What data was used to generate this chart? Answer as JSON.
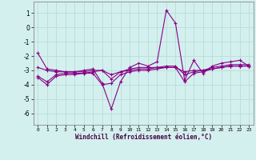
{
  "xlabel": "Windchill (Refroidissement éolien,°C)",
  "bg_color": "#d4f0ee",
  "grid_color": "#b8ddd8",
  "line_color": "#880088",
  "xlim": [
    -0.5,
    23.5
  ],
  "ylim": [
    -6.8,
    1.8
  ],
  "xticks": [
    0,
    1,
    2,
    3,
    4,
    5,
    6,
    7,
    8,
    9,
    10,
    11,
    12,
    13,
    14,
    15,
    16,
    17,
    18,
    19,
    20,
    21,
    22,
    23
  ],
  "yticks": [
    -6,
    -5,
    -4,
    -3,
    -2,
    -1,
    0,
    1
  ],
  "series1_x": [
    0,
    1,
    2,
    3,
    4,
    5,
    6,
    7,
    8,
    9,
    10,
    11,
    12,
    13,
    14,
    15,
    16,
    17,
    18,
    19,
    20,
    21,
    22,
    23
  ],
  "series1_y": [
    -1.8,
    -2.9,
    -3.0,
    -3.1,
    -3.1,
    -3.0,
    -2.9,
    -3.9,
    -5.7,
    -3.8,
    -2.8,
    -2.5,
    -2.7,
    -2.4,
    1.2,
    0.3,
    -3.7,
    -2.3,
    -3.2,
    -2.7,
    -2.5,
    -2.4,
    -2.3,
    -2.7
  ],
  "series2_x": [
    0,
    1,
    2,
    3,
    4,
    5,
    6,
    7,
    8,
    9,
    10,
    11,
    12,
    13,
    14,
    15,
    16,
    17,
    18,
    19,
    20,
    21,
    22,
    23
  ],
  "series2_y": [
    -2.8,
    -3.0,
    -3.1,
    -3.1,
    -3.1,
    -3.1,
    -3.0,
    -3.0,
    -3.3,
    -3.1,
    -3.0,
    -2.9,
    -2.9,
    -2.8,
    -2.8,
    -2.8,
    -3.1,
    -3.0,
    -3.0,
    -2.9,
    -2.8,
    -2.7,
    -2.7,
    -2.7
  ],
  "series3_x": [
    0,
    1,
    2,
    3,
    4,
    5,
    6,
    7,
    8,
    9,
    10,
    11,
    12,
    13,
    14,
    15,
    16,
    17,
    18,
    19,
    20,
    21,
    22,
    23
  ],
  "series3_y": [
    -3.4,
    -3.8,
    -3.3,
    -3.2,
    -3.2,
    -3.2,
    -3.1,
    -3.0,
    -3.6,
    -3.1,
    -2.9,
    -2.8,
    -2.8,
    -2.8,
    -2.7,
    -2.7,
    -3.3,
    -3.1,
    -3.0,
    -2.8,
    -2.7,
    -2.6,
    -2.6,
    -2.6
  ],
  "series4_x": [
    0,
    1,
    2,
    3,
    4,
    5,
    6,
    7,
    8,
    9,
    10,
    11,
    12,
    13,
    14,
    15,
    16,
    17,
    18,
    19,
    20,
    21,
    22,
    23
  ],
  "series4_y": [
    -3.5,
    -4.0,
    -3.4,
    -3.3,
    -3.3,
    -3.2,
    -3.2,
    -4.0,
    -3.9,
    -3.3,
    -3.1,
    -3.0,
    -3.0,
    -2.9,
    -2.8,
    -2.8,
    -3.8,
    -3.2,
    -3.1,
    -2.9,
    -2.8,
    -2.7,
    -2.7,
    -2.7
  ]
}
